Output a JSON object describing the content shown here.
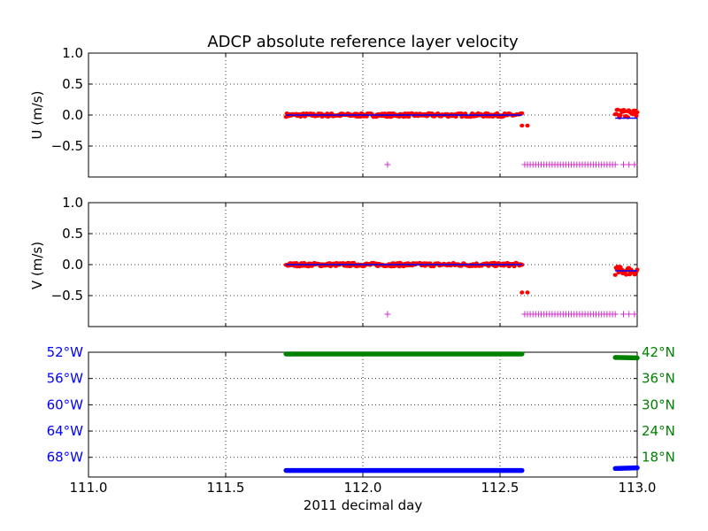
{
  "chart_data": [
    {
      "type": "scatter",
      "title": "ADCP absolute reference layer velocity",
      "ylabel": "U (m/s)",
      "xlim": [
        111.0,
        113.0
      ],
      "ylim": [
        -1.0,
        1.0
      ],
      "yticks": [
        1.0,
        0.5,
        0.0,
        -0.5
      ],
      "ytick_labels": [
        "1.0",
        "0.5",
        "0.0",
        "−0.5"
      ],
      "grid": true,
      "series": [
        {
          "color": "#ff0000",
          "marker": "dot",
          "segments": [
            {
              "x_start": 111.72,
              "x_end": 112.58,
              "y_center": 0.0,
              "y_spread": 0.03
            },
            {
              "x_start": 112.92,
              "x_end": 113.0,
              "y_center": 0.02,
              "y_spread": 0.07
            }
          ],
          "extra_points": [
            [
              112.58,
              -0.17
            ],
            [
              112.6,
              -0.17
            ]
          ]
        },
        {
          "color": "#0000ff",
          "marker": "line",
          "segments": [
            {
              "x_start": 111.72,
              "x_end": 112.58,
              "y_center": 0.0
            },
            {
              "x_start": 112.92,
              "x_end": 113.0,
              "y_center": -0.05
            }
          ]
        },
        {
          "color": "#cc33cc",
          "marker": "plus",
          "y_value": -0.8,
          "isolated_x": [
            112.09
          ],
          "dense_range": [
            112.59,
            112.92
          ],
          "sparse_x": [
            112.95,
            112.97,
            112.99
          ]
        }
      ]
    },
    {
      "type": "scatter",
      "ylabel": "V (m/s)",
      "xlim": [
        111.0,
        113.0
      ],
      "ylim": [
        -1.0,
        1.0
      ],
      "yticks": [
        1.0,
        0.5,
        0.0,
        -0.5
      ],
      "ytick_labels": [
        "1.0",
        "0.5",
        "0.0",
        "−0.5"
      ],
      "grid": true,
      "series": [
        {
          "color": "#ff0000",
          "marker": "dot",
          "segments": [
            {
              "x_start": 111.72,
              "x_end": 112.58,
              "y_center": 0.0,
              "y_spread": 0.03
            },
            {
              "x_start": 112.92,
              "x_end": 113.0,
              "y_center": -0.1,
              "y_spread": 0.07
            }
          ],
          "extra_points": [
            [
              112.58,
              -0.45
            ],
            [
              112.6,
              -0.45
            ]
          ]
        },
        {
          "color": "#0000ff",
          "marker": "line",
          "segments": [
            {
              "x_start": 111.72,
              "x_end": 112.58,
              "y_center": 0.0
            },
            {
              "x_start": 112.92,
              "x_end": 113.0,
              "y_center": -0.1
            }
          ]
        },
        {
          "color": "#cc33cc",
          "marker": "plus",
          "y_value": -0.8,
          "isolated_x": [
            112.09
          ],
          "dense_range": [
            112.59,
            112.92
          ],
          "sparse_x": [
            112.95,
            112.97,
            112.99
          ]
        }
      ]
    },
    {
      "type": "line",
      "xlabel": "2011 decimal day",
      "xlim": [
        111.0,
        113.0
      ],
      "xticks": [
        111.0,
        111.5,
        112.0,
        112.5,
        113.0
      ],
      "xtick_labels": [
        "111.0",
        "111.5",
        "112.0",
        "112.5",
        "113.0"
      ],
      "grid": true,
      "left_axis": {
        "color": "#0000ff",
        "quantity": "longitude",
        "ylim": [
          -71.0,
          -52.0
        ],
        "yticks": [
          -52,
          -56,
          -60,
          -64,
          -68
        ],
        "ytick_labels": [
          "52°W",
          "56°W",
          "60°W",
          "64°W",
          "68°W"
        ]
      },
      "right_axis": {
        "color": "#008000",
        "quantity": "latitude",
        "ylim": [
          13.5,
          42.0
        ],
        "yticks": [
          42,
          36,
          30,
          24,
          18
        ],
        "ytick_labels": [
          "42°N",
          "36°N",
          "30°N",
          "24°N",
          "18°N"
        ]
      },
      "series": [
        {
          "color": "#0000ff",
          "axis": "left",
          "segments": [
            {
              "x_start": 111.72,
              "x_end": 112.58,
              "y_start": -70.0,
              "y_end": -70.0
            },
            {
              "x_start": 112.92,
              "x_end": 113.0,
              "y_start": -69.7,
              "y_end": -69.6
            }
          ]
        },
        {
          "color": "#008000",
          "axis": "right",
          "segments": [
            {
              "x_start": 111.72,
              "x_end": 112.58,
              "y_start": 41.6,
              "y_end": 41.6
            },
            {
              "x_start": 112.92,
              "x_end": 113.0,
              "y_start": 40.8,
              "y_end": 40.7
            }
          ]
        }
      ]
    }
  ]
}
